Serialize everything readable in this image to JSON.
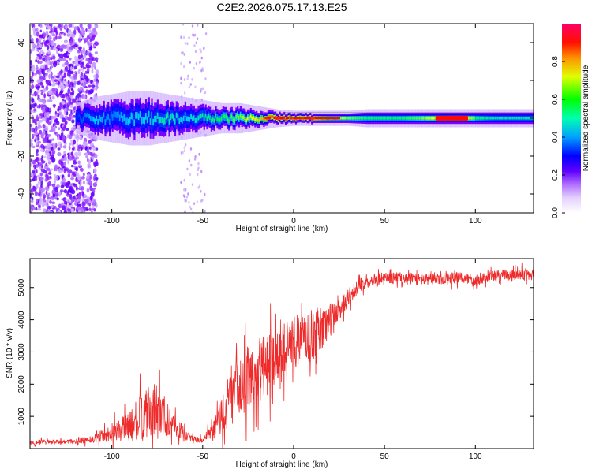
{
  "title": "C2E2.2026.075.17.13.E25",
  "colors": {
    "snr_line": "#ee2a2a",
    "axis": "#000000",
    "colormap": [
      "#ffffff",
      "#c8a0ff",
      "#7a00ff",
      "#0000ff",
      "#00c8ff",
      "#00ff40",
      "#ffff00",
      "#ff8000",
      "#ff0000",
      "#ff0066"
    ]
  },
  "chart_data": [
    {
      "type": "heatmap",
      "xlabel": "Height of straight line (km)",
      "ylabel": "Frequency (Hz)",
      "xlim": [
        -145,
        132
      ],
      "ylim": [
        -50,
        50
      ],
      "xticks": [
        -100,
        -50,
        0,
        50,
        100
      ],
      "yticks": [
        -40,
        -20,
        0,
        20,
        40
      ],
      "colorbar": {
        "label": "Normalized spectral amplitude",
        "range": [
          0,
          1
        ],
        "ticks": [
          0.0,
          0.2,
          0.4,
          0.6,
          0.8
        ]
      },
      "centerline_amplitude": {
        "x": [
          -120,
          -110,
          -100,
          -90,
          -80,
          -70,
          -60,
          -50,
          -40,
          -30,
          -20,
          -10,
          0,
          10,
          20,
          30,
          40,
          50,
          60,
          70,
          80,
          90,
          100,
          110,
          120,
          130
        ],
        "values": [
          0.35,
          0.45,
          0.4,
          0.45,
          0.45,
          0.5,
          0.45,
          0.5,
          0.55,
          0.6,
          0.7,
          0.85,
          0.8,
          0.85,
          0.7,
          0.6,
          0.55,
          0.55,
          0.55,
          0.6,
          0.7,
          0.85,
          0.55,
          0.5,
          0.5,
          0.5
        ]
      },
      "centerline_halfwidth_hz": {
        "x": [
          -120,
          -110,
          -100,
          -90,
          -80,
          -70,
          -60,
          -50,
          -40,
          -30,
          -20,
          -10,
          0,
          10,
          20,
          30,
          40,
          50,
          60,
          70,
          80,
          90,
          100,
          110,
          120,
          130
        ],
        "values": [
          5,
          7,
          8,
          9,
          9,
          8,
          7,
          6,
          5,
          5,
          4,
          3,
          2.5,
          2.5,
          2.5,
          2.5,
          3,
          3,
          3,
          3,
          3,
          3,
          3,
          3,
          3,
          3
        ]
      }
    },
    {
      "type": "line",
      "xlabel": "Height of straight line (km)",
      "ylabel": "SNR (10 * v/v)",
      "xlim": [
        -145,
        132
      ],
      "ylim": [
        0,
        5900
      ],
      "xticks": [
        -100,
        -50,
        0,
        50,
        100
      ],
      "yticks": [
        1000,
        2000,
        3000,
        4000,
        5000
      ],
      "series": [
        {
          "x": [
            -145,
            -130,
            -120,
            -110,
            -100,
            -90,
            -85,
            -80,
            -75,
            -70,
            -65,
            -60,
            -55,
            -50,
            -45,
            -40,
            -35,
            -30,
            -25,
            -20,
            -15,
            -10,
            -5,
            0,
            5,
            10,
            15,
            20,
            25,
            30,
            35,
            40,
            50,
            60,
            70,
            80,
            90,
            100,
            110,
            120,
            132
          ],
          "values": [
            200,
            200,
            220,
            300,
            500,
            700,
            900,
            1100,
            1200,
            1000,
            700,
            450,
            300,
            250,
            500,
            1000,
            1500,
            1900,
            2200,
            2300,
            2600,
            2900,
            3100,
            3300,
            3400,
            3500,
            3700,
            4000,
            4300,
            4700,
            5000,
            5200,
            5300,
            5300,
            5250,
            5250,
            5300,
            5250,
            5350,
            5400,
            5400
          ],
          "noise_amplitude": [
            80,
            80,
            80,
            150,
            300,
            500,
            800,
            900,
            1000,
            700,
            400,
            200,
            100,
            100,
            300,
            700,
            900,
            1000,
            1100,
            1100,
            1100,
            1000,
            900,
            900,
            900,
            900,
            800,
            600,
            400,
            300,
            250,
            200,
            200,
            200,
            200,
            200,
            200,
            200,
            200,
            200,
            200
          ]
        }
      ]
    }
  ]
}
